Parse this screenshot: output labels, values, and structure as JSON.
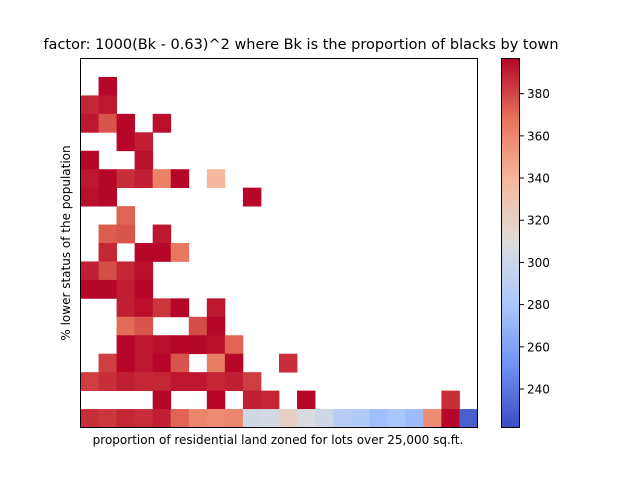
{
  "chart_data": {
    "type": "heatmap",
    "title": "factor: 1000(Bk - 0.63)^2 where Bk is the proportion of blacks by town",
    "xlabel": "proportion of residential land zoned for lots over 25,000 sq.ft.",
    "ylabel": "% lower status of the population",
    "x_ticks_shown": false,
    "y_ticks_shown": false,
    "colormap": "coolwarm",
    "colormap_stops": [
      "#3b4cc0",
      "#6f92f3",
      "#aac7fd",
      "#dddcdc",
      "#f7b89c",
      "#e7745b",
      "#b40426"
    ],
    "colorbar": {
      "vmin": 222,
      "vmax": 396.9,
      "ticks": [
        240,
        260,
        280,
        300,
        320,
        340,
        360,
        380
      ],
      "tick_labels": [
        "240",
        "260",
        "280",
        "300",
        "320",
        "340",
        "360",
        "380"
      ]
    },
    "n_cols": 22,
    "n_rows": 20,
    "row_order": "top-to-bottom",
    "grid_values": [
      [
        null,
        396,
        null,
        null,
        null,
        null,
        null,
        null,
        null,
        null,
        null,
        null,
        null,
        null,
        null,
        null,
        null,
        null,
        null,
        null,
        null,
        null
      ],
      [
        388,
        392,
        null,
        null,
        null,
        null,
        null,
        null,
        null,
        null,
        null,
        null,
        null,
        null,
        null,
        null,
        null,
        null,
        null,
        null,
        null,
        null
      ],
      [
        392,
        376,
        396,
        null,
        394,
        null,
        null,
        null,
        null,
        null,
        null,
        null,
        null,
        null,
        null,
        null,
        null,
        null,
        null,
        null,
        null,
        null
      ],
      [
        null,
        null,
        396,
        390,
        null,
        null,
        null,
        null,
        null,
        null,
        null,
        null,
        null,
        null,
        null,
        null,
        null,
        null,
        null,
        null,
        null,
        null
      ],
      [
        396,
        null,
        null,
        394,
        null,
        null,
        null,
        null,
        null,
        null,
        null,
        null,
        null,
        null,
        null,
        null,
        null,
        null,
        null,
        null,
        null,
        null
      ],
      [
        392,
        396,
        386,
        390,
        362,
        396,
        null,
        338,
        null,
        null,
        null,
        null,
        null,
        null,
        null,
        null,
        null,
        null,
        null,
        null,
        null,
        null
      ],
      [
        394,
        396,
        null,
        null,
        null,
        null,
        null,
        null,
        null,
        396,
        null,
        null,
        null,
        null,
        null,
        null,
        null,
        null,
        null,
        null,
        null,
        null
      ],
      [
        null,
        null,
        372,
        null,
        null,
        null,
        null,
        null,
        null,
        null,
        null,
        null,
        null,
        null,
        null,
        null,
        null,
        null,
        null,
        null,
        null,
        null
      ],
      [
        null,
        374,
        376,
        null,
        392,
        null,
        null,
        null,
        null,
        null,
        null,
        null,
        null,
        null,
        null,
        null,
        null,
        null,
        null,
        null,
        null,
        null
      ],
      [
        null,
        388,
        null,
        396,
        396,
        366,
        null,
        null,
        null,
        null,
        null,
        null,
        null,
        null,
        null,
        null,
        null,
        null,
        null,
        null,
        null,
        null
      ],
      [
        390,
        378,
        388,
        394,
        null,
        null,
        null,
        null,
        null,
        null,
        null,
        null,
        null,
        null,
        null,
        null,
        null,
        null,
        null,
        null,
        null,
        null
      ],
      [
        396,
        396,
        390,
        396,
        null,
        null,
        null,
        null,
        null,
        null,
        null,
        null,
        null,
        null,
        null,
        null,
        null,
        null,
        null,
        null,
        null,
        null
      ],
      [
        null,
        null,
        390,
        394,
        384,
        396,
        null,
        392,
        null,
        null,
        null,
        null,
        null,
        null,
        null,
        null,
        null,
        null,
        null,
        null,
        null,
        null
      ],
      [
        null,
        null,
        370,
        376,
        null,
        null,
        378,
        396,
        null,
        null,
        null,
        null,
        null,
        null,
        null,
        null,
        null,
        null,
        null,
        null,
        null,
        null
      ],
      [
        null,
        null,
        396,
        392,
        394,
        396,
        396,
        394,
        372,
        null,
        null,
        null,
        null,
        null,
        null,
        null,
        null,
        null,
        null,
        null,
        null,
        null
      ],
      [
        null,
        382,
        396,
        392,
        396,
        376,
        null,
        364,
        396,
        null,
        null,
        386,
        null,
        null,
        null,
        null,
        null,
        null,
        null,
        null,
        null,
        null
      ],
      [
        382,
        386,
        390,
        388,
        388,
        392,
        392,
        388,
        390,
        382,
        null,
        null,
        null,
        null,
        null,
        null,
        null,
        null,
        null,
        null,
        null,
        null
      ],
      [
        null,
        null,
        null,
        null,
        396,
        null,
        null,
        396,
        null,
        390,
        388,
        null,
        396,
        null,
        null,
        null,
        null,
        null,
        null,
        null,
        386,
        null
      ],
      [
        386,
        384,
        388,
        386,
        390,
        372,
        360,
        358,
        360,
        302,
        304,
        320,
        308,
        302,
        288,
        284,
        276,
        280,
        274,
        358,
        396,
        230
      ]
    ]
  }
}
